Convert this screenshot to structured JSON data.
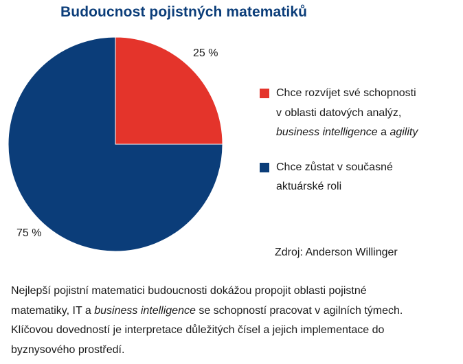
{
  "title": "Budoucnost pojistných matematiků",
  "chart_data": {
    "type": "pie",
    "title": "Budoucnost pojistných matematiků",
    "start_angle_deg": 0,
    "direction": "clockwise",
    "slices": [
      {
        "value": 25,
        "label": "25 %",
        "color": "#e4342b",
        "legend_lines": [
          [
            {
              "text": "Chce rozvíjet své schopnosti",
              "italic": false
            }
          ],
          [
            {
              "text": "v oblasti datových analýz,",
              "italic": false
            }
          ],
          [
            {
              "text": "business intelligence",
              "italic": true
            },
            {
              "text": " a ",
              "italic": false
            },
            {
              "text": "agility",
              "italic": true
            }
          ]
        ]
      },
      {
        "value": 75,
        "label": "75 %",
        "color": "#0b3d79",
        "legend_lines": [
          [
            {
              "text": "Chce zůstat v současné",
              "italic": false
            }
          ],
          [
            {
              "text": "aktuárské roli",
              "italic": false
            }
          ]
        ]
      }
    ],
    "legend_position": "right"
  },
  "source": "Zdroj: Anderson Willinger",
  "footer": {
    "lines": [
      [
        {
          "text": "Nejlepší pojistní matematici budoucnosti dokážou propojit oblasti pojistné",
          "italic": false
        }
      ],
      [
        {
          "text": "matematiky, IT a ",
          "italic": false
        },
        {
          "text": "business intelligence",
          "italic": true
        },
        {
          "text": " se schopností pracovat v agilních týmech.",
          "italic": false
        }
      ],
      [
        {
          "text": "Klíčovou dovedností je interpretace důležitých čísel a jejich implementace do",
          "italic": false
        }
      ],
      [
        {
          "text": "byznysového prostředí.",
          "italic": false
        }
      ]
    ]
  }
}
